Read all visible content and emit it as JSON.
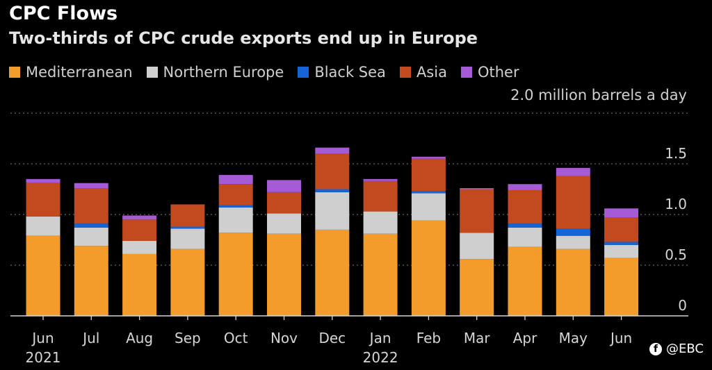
{
  "chart_data": {
    "type": "bar",
    "stacked": true,
    "title": "CPC Flows",
    "subtitle": "Two-thirds of CPC crude exports end up in Europe",
    "units_label": "2.0 million barrels a day",
    "categories": [
      "Jun",
      "Jul",
      "Aug",
      "Sep",
      "Oct",
      "Nov",
      "Dec",
      "Jan",
      "Feb",
      "Mar",
      "Apr",
      "May",
      "Jun"
    ],
    "year_labels": [
      {
        "index": 0,
        "label": "2021"
      },
      {
        "index": 7,
        "label": "2022"
      }
    ],
    "y_ticks": [
      {
        "value": 0,
        "label": "0"
      },
      {
        "value": 0.5,
        "label": "0.5"
      },
      {
        "value": 1.0,
        "label": "1.0"
      },
      {
        "value": 1.5,
        "label": "1.5"
      }
    ],
    "ylim": [
      0,
      2.0
    ],
    "grid": true,
    "legend_position": "top",
    "series": [
      {
        "name": "Mediterranean",
        "color": "#f39c2b",
        "values": [
          0.79,
          0.69,
          0.61,
          0.66,
          0.82,
          0.81,
          0.85,
          0.81,
          0.94,
          0.56,
          0.68,
          0.66,
          0.57
        ]
      },
      {
        "name": "Northern Europe",
        "color": "#cfcfcf",
        "values": [
          0.19,
          0.18,
          0.13,
          0.2,
          0.25,
          0.2,
          0.37,
          0.22,
          0.27,
          0.26,
          0.19,
          0.13,
          0.13
        ]
      },
      {
        "name": "Black Sea",
        "color": "#1565d8",
        "values": [
          0.0,
          0.04,
          0.0,
          0.02,
          0.02,
          0.0,
          0.03,
          0.0,
          0.02,
          0.0,
          0.04,
          0.07,
          0.03
        ]
      },
      {
        "name": "Asia",
        "color": "#c24a1e",
        "values": [
          0.33,
          0.35,
          0.21,
          0.22,
          0.21,
          0.21,
          0.35,
          0.3,
          0.32,
          0.43,
          0.33,
          0.52,
          0.24
        ]
      },
      {
        "name": "Other",
        "color": "#a55ad6",
        "values": [
          0.04,
          0.05,
          0.04,
          0.0,
          0.09,
          0.12,
          0.06,
          0.02,
          0.02,
          0.01,
          0.06,
          0.08,
          0.09
        ]
      }
    ]
  },
  "watermark": {
    "icon": "facebook-icon",
    "text": "@EBC"
  }
}
